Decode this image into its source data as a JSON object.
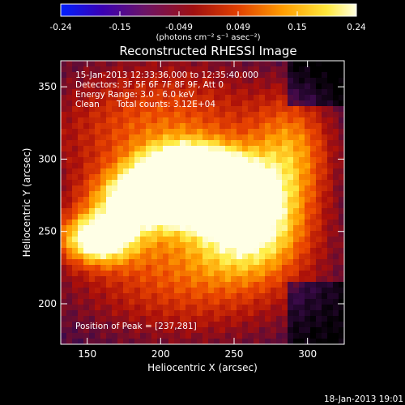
{
  "chart_data": {
    "type": "heatmap",
    "title": "Reconstructed RHESSI Image",
    "xlabel": "Heliocentric X (arcsec)",
    "ylabel": "Heliocentric Y (arcsec)",
    "xlim": [
      132,
      325
    ],
    "ylim": [
      172,
      368
    ],
    "xticks": [
      150,
      200,
      250,
      300
    ],
    "yticks": [
      200,
      250,
      300,
      350
    ],
    "colorbar": {
      "range": [
        -0.24,
        0.24
      ],
      "ticks": [
        "-0.24",
        "-0.15",
        "-0.049",
        "0.049",
        "0.15",
        "0.24"
      ],
      "units_label": "(photons cm⁻² s⁻¹ asec⁻²)",
      "colors": [
        "#0020ff",
        "#3a00b4",
        "#6a1468",
        "#a01010",
        "#e04000",
        "#ff9c00",
        "#ffe83c",
        "#ffffe0"
      ]
    },
    "annotations": {
      "time_range": "15-Jan-2013 12:33:36.000 to 12:35:40.000",
      "detectors": "Detectors: 3F 5F 6F 7F 8F 9F, Att 0",
      "energy": "Energy Range: 3.0 - 6.0 keV",
      "clean": "Clean",
      "counts": "Total counts: 3.12E+04",
      "peak": "Position of Peak = [237,281]"
    },
    "peak": {
      "x": 237,
      "y": 281
    },
    "sources": [
      {
        "x": 237,
        "y": 281,
        "amp": 1.0,
        "sx": 22,
        "sy": 16
      },
      {
        "x": 212,
        "y": 288,
        "amp": 0.78,
        "sx": 20,
        "sy": 14
      },
      {
        "x": 188,
        "y": 272,
        "amp": 0.72,
        "sx": 24,
        "sy": 14
      },
      {
        "x": 157,
        "y": 245,
        "amp": 0.78,
        "sx": 18,
        "sy": 12
      },
      {
        "x": 262,
        "y": 255,
        "amp": 0.6,
        "sx": 26,
        "sy": 24
      },
      {
        "x": 290,
        "y": 305,
        "amp": 0.45,
        "sx": 20,
        "sy": 28
      },
      {
        "x": 200,
        "y": 320,
        "amp": 0.45,
        "sx": 55,
        "sy": 35
      },
      {
        "x": 220,
        "y": 225,
        "amp": 0.45,
        "sx": 60,
        "sy": 35
      }
    ]
  },
  "footer": {
    "timestamp": "18-Jan-2013 19:01"
  }
}
